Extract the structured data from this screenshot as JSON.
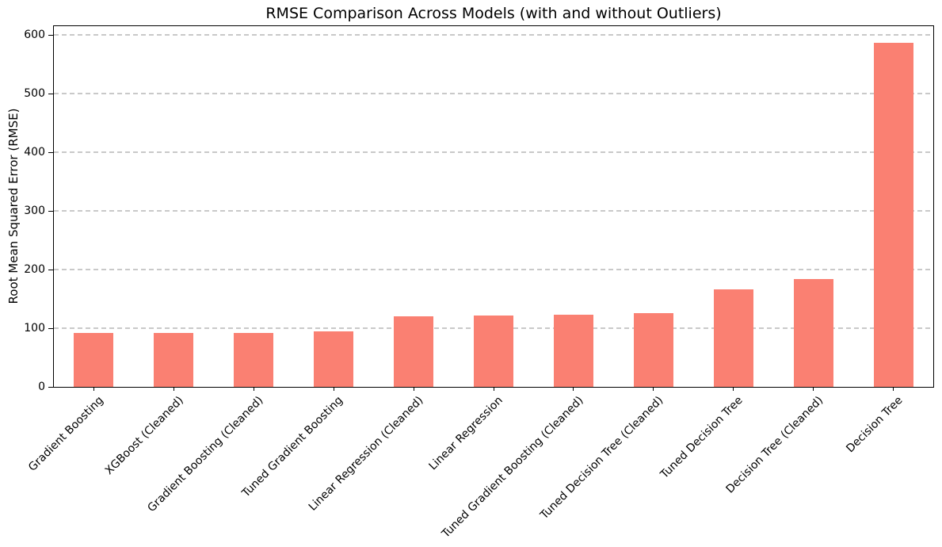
{
  "chart_data": {
    "type": "bar",
    "title": "RMSE Comparison Across Models (with and without Outliers)",
    "xlabel": "",
    "ylabel": "Root Mean Squared Error (RMSE)",
    "categories": [
      "Gradient Boosting",
      "XGBoost (Cleaned)",
      "Gradient Boosting (Cleaned)",
      "Tuned Gradient Boosting",
      "Linear Regression (Cleaned)",
      "Linear Regression",
      "Tuned Gradient Boosting (Cleaned)",
      "Tuned Decision Tree (Cleaned)",
      "Tuned Decision Tree",
      "Decision Tree (Cleaned)",
      "Decision Tree"
    ],
    "values": [
      92,
      92,
      92,
      94,
      120,
      122,
      123,
      126,
      166,
      184,
      586
    ],
    "yticks": [
      0,
      100,
      200,
      300,
      400,
      500,
      600
    ],
    "ylim": [
      0,
      615
    ],
    "bar_color": "#fa8072",
    "grid": "horizontal-dashed",
    "grid_color": "#c9c9c9",
    "legend": false,
    "x_tick_rotation_deg": 45
  }
}
